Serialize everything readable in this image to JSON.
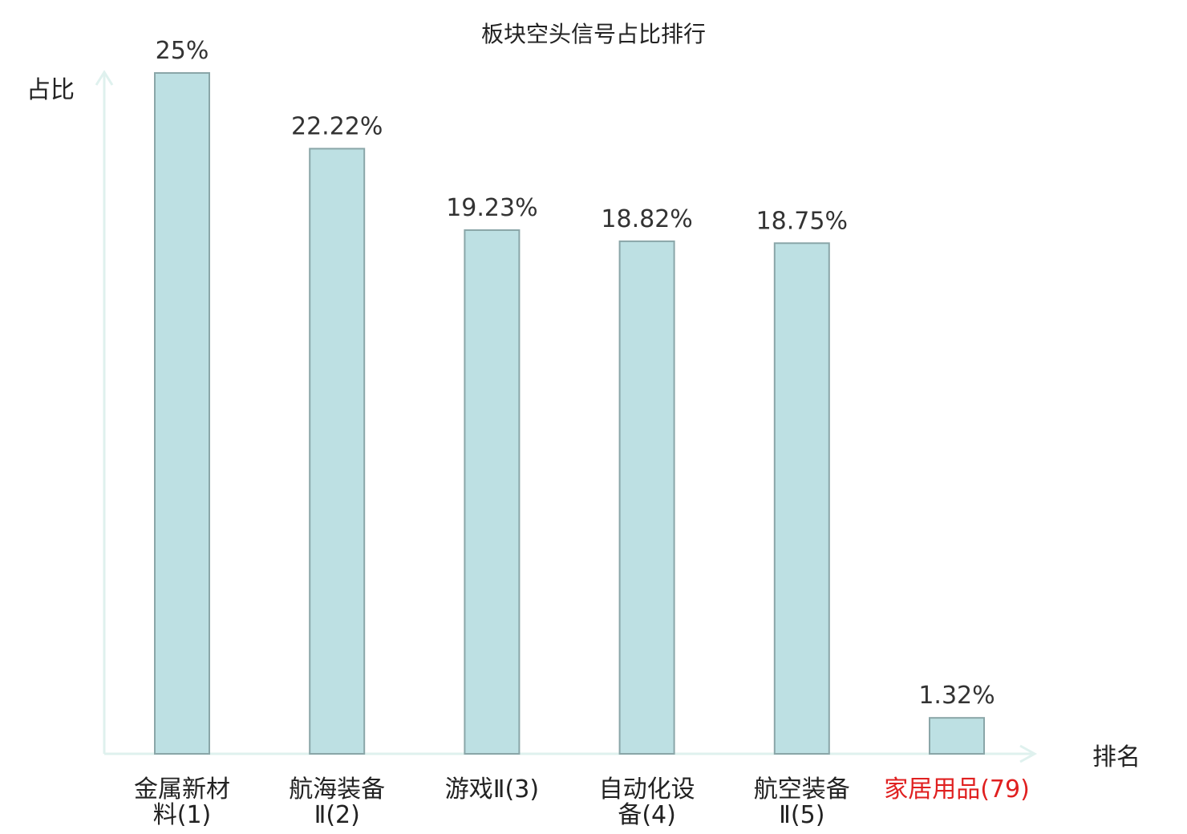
{
  "chart_data": {
    "type": "bar",
    "title": "板块空头信号占比排行",
    "xlabel": "排名",
    "ylabel": "占比",
    "ylim": [
      0,
      25
    ],
    "categories": [
      [
        "金属新材",
        "料(1)"
      ],
      [
        "航海装备",
        "Ⅱ(2)"
      ],
      [
        "游戏Ⅱ(3)"
      ],
      [
        "自动化设",
        "备(4)"
      ],
      [
        "航空装备",
        "Ⅱ(5)"
      ],
      [
        "家居用品(79)"
      ]
    ],
    "values": [
      25,
      22.22,
      19.23,
      18.82,
      18.75,
      1.32
    ],
    "value_labels": [
      "25%",
      "22.22%",
      "19.23%",
      "18.82%",
      "18.75%",
      "1.32%"
    ],
    "highlight_index": 5,
    "colors": {
      "bar_fill": "#bde0e3",
      "bar_stroke": "#8aa6a8",
      "axis": "#dff1ee",
      "label_text": "#222222",
      "highlight_text": "#e02020"
    }
  }
}
